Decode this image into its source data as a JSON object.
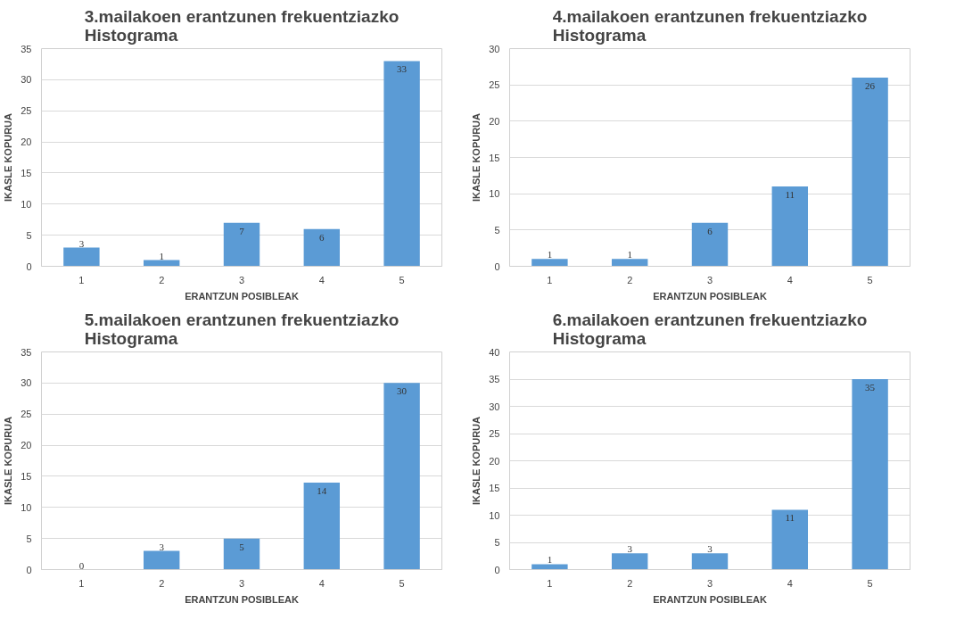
{
  "chart_data": [
    {
      "type": "bar",
      "title": "3.mailakoen erantzunen frekuentziazko Histograma",
      "xlabel": "ERANTZUN POSIBLEAK",
      "ylabel": "IKASLE KOPURUA",
      "categories": [
        "1",
        "2",
        "3",
        "4",
        "5"
      ],
      "values": [
        3,
        1,
        7,
        6,
        33
      ],
      "color": "#5b9bd5",
      "ylim": [
        0,
        35
      ],
      "yticks": [
        0,
        5,
        10,
        15,
        20,
        25,
        30,
        35
      ],
      "grid": "y",
      "data_labels": true
    },
    {
      "type": "bar",
      "title": "4.mailakoen erantzunen frekuentziazko Histograma",
      "xlabel": "ERANTZUN POSIBLEAK",
      "ylabel": "IKASLE KOPURUA",
      "categories": [
        "1",
        "2",
        "3",
        "4",
        "5"
      ],
      "values": [
        1,
        1,
        6,
        11,
        26
      ],
      "color": "#5b9bd5",
      "ylim": [
        0,
        30
      ],
      "yticks": [
        0,
        5,
        10,
        15,
        20,
        25,
        30
      ],
      "grid": "y",
      "data_labels": true
    },
    {
      "type": "bar",
      "title": "5.mailakoen erantzunen frekuentziazko Histograma",
      "xlabel": "ERANTZUN POSIBLEAK",
      "ylabel": "IKASLE KOPURUA",
      "categories": [
        "1",
        "2",
        "3",
        "4",
        "5"
      ],
      "values": [
        0,
        3,
        5,
        14,
        30
      ],
      "color": "#5b9bd5",
      "ylim": [
        0,
        35
      ],
      "yticks": [
        0,
        5,
        10,
        15,
        20,
        25,
        30,
        35
      ],
      "grid": "y",
      "data_labels": true
    },
    {
      "type": "bar",
      "title": "6.mailakoen erantzunen frekuentziazko Histograma",
      "xlabel": "ERANTZUN POSIBLEAK",
      "ylabel": "IKASLE KOPURUA",
      "categories": [
        "1",
        "2",
        "3",
        "4",
        "5"
      ],
      "values": [
        1,
        3,
        3,
        11,
        35
      ],
      "color": "#5b9bd5",
      "ylim": [
        0,
        40
      ],
      "yticks": [
        0,
        5,
        10,
        15,
        20,
        25,
        30,
        35,
        40
      ],
      "grid": "y",
      "data_labels": true
    }
  ]
}
